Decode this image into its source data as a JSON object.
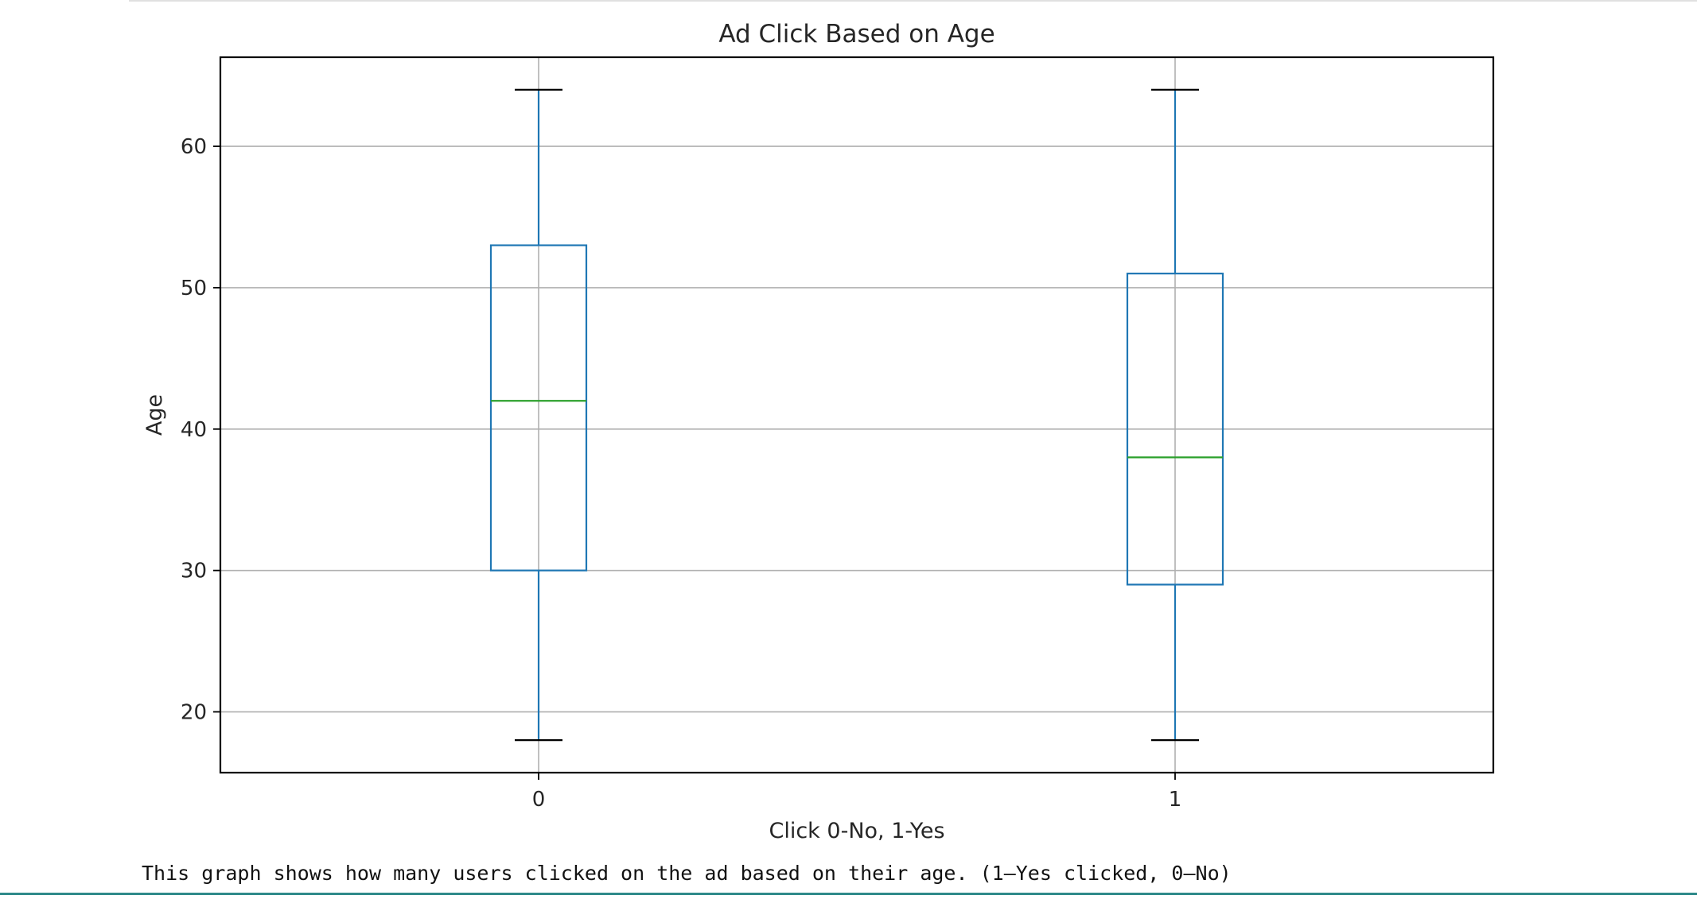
{
  "chart_data": {
    "type": "box",
    "title": "Ad Click Based on Age",
    "xlabel": "Click 0-No, 1-Yes",
    "ylabel": "Age",
    "ylim": [
      15.7,
      66.3
    ],
    "yticks": [
      20,
      30,
      40,
      50,
      60
    ],
    "grid": true,
    "categories": [
      "0",
      "1"
    ],
    "boxes": [
      {
        "category": "0",
        "whisker_low": 18,
        "q1": 30,
        "median": 42,
        "q3": 53,
        "whisker_high": 64
      },
      {
        "category": "1",
        "whisker_low": 18,
        "q1": 29,
        "median": 38,
        "q3": 51,
        "whisker_high": 64
      }
    ],
    "colors": {
      "box": "#1f77b4",
      "median": "#2ca02c",
      "cap": "#000000",
      "grid": "#b0b0b0",
      "text": "#262626"
    }
  },
  "caption": "This graph shows how many users clicked on the ad based on their age. (1–Yes clicked, 0–No)"
}
